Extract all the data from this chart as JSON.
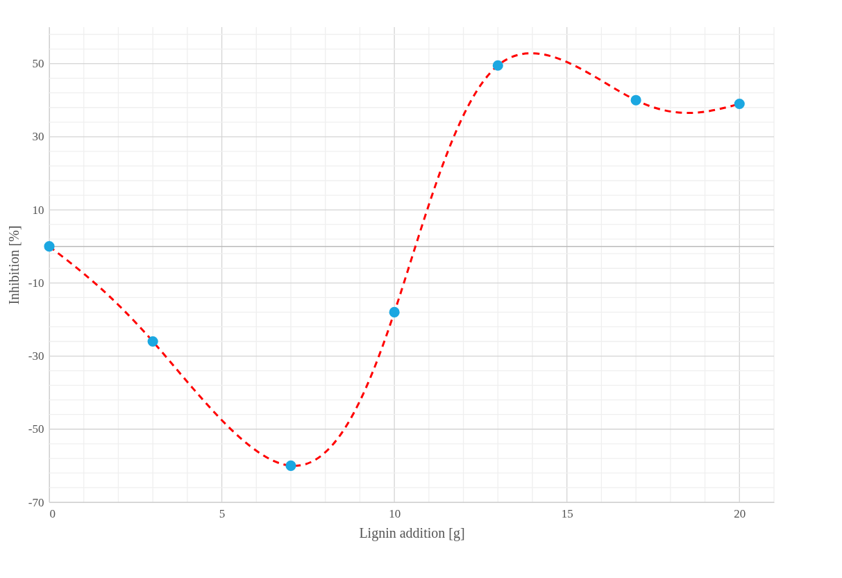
{
  "chart_data": {
    "type": "line",
    "xlabel": "Lignin addition [g]",
    "ylabel": "Inhibition [%]",
    "x": [
      0,
      3,
      7,
      10,
      13,
      17,
      20
    ],
    "series": [
      {
        "color": "#ff0000",
        "line_style": "dashed",
        "marker": "none",
        "values": [
          0,
          -26,
          -60,
          -18,
          49.5,
          40,
          39
        ]
      },
      {
        "type": "scatter",
        "color": "#1ba7e1",
        "marker": "circle",
        "values": [
          0,
          -26,
          -60,
          -18,
          49.5,
          40,
          39
        ]
      }
    ],
    "xlim": [
      0,
      21
    ],
    "ylim": [
      -70,
      60
    ],
    "xticks": [
      0,
      {
        "value": 1,
        "label": null
      },
      {
        "value": 2,
        "label": null
      },
      {
        "value": 3,
        "label": null
      },
      {
        "value": 4,
        "label": null
      },
      5,
      {
        "value": 6,
        "label": null
      },
      {
        "value": 7,
        "label": null
      },
      {
        "value": 8,
        "label": null
      },
      {
        "value": 9,
        "label": null
      },
      10,
      {
        "value": 11,
        "label": null
      },
      {
        "value": 12,
        "label": null
      },
      {
        "value": 13,
        "label": null
      },
      {
        "value": 14,
        "label": null
      },
      15,
      {
        "value": 16,
        "label": null
      },
      {
        "value": 17,
        "label": null
      },
      {
        "value": 18,
        "label": null
      },
      {
        "value": 19,
        "label": null
      },
      20,
      {
        "value": 21,
        "label": null
      }
    ],
    "yticks": [
      -70,
      {
        "value": -66,
        "label": null
      },
      {
        "value": -62,
        "label": null
      },
      {
        "value": -58,
        "label": null
      },
      {
        "value": -54,
        "label": null
      },
      -50,
      {
        "value": -46,
        "label": null
      },
      {
        "value": -42,
        "label": null
      },
      {
        "value": -38,
        "label": null
      },
      {
        "value": -34,
        "label": null
      },
      -30,
      {
        "value": -26,
        "label": null
      },
      {
        "value": -22,
        "label": null
      },
      {
        "value": -18,
        "label": null
      },
      {
        "value": -14,
        "label": null
      },
      -10,
      {
        "value": -6,
        "label": null
      },
      {
        "value": -2,
        "label": null
      },
      {
        "value": 2,
        "label": null
      },
      {
        "value": 6,
        "label": null
      },
      10,
      {
        "value": 14,
        "label": null
      },
      {
        "value": 18,
        "label": null
      },
      {
        "value": 22,
        "label": null
      },
      {
        "value": 26,
        "label": null
      },
      30,
      {
        "value": 34,
        "label": null
      },
      {
        "value": 38,
        "label": null
      },
      {
        "value": 42,
        "label": null
      },
      {
        "value": 46,
        "label": null
      },
      50,
      {
        "value": 54,
        "label": null
      },
      {
        "value": 58,
        "label": null
      }
    ],
    "ref_lines": [
      {
        "axis": "y",
        "value": 0,
        "color": "#bbbbbb"
      }
    ],
    "grid": true
  }
}
